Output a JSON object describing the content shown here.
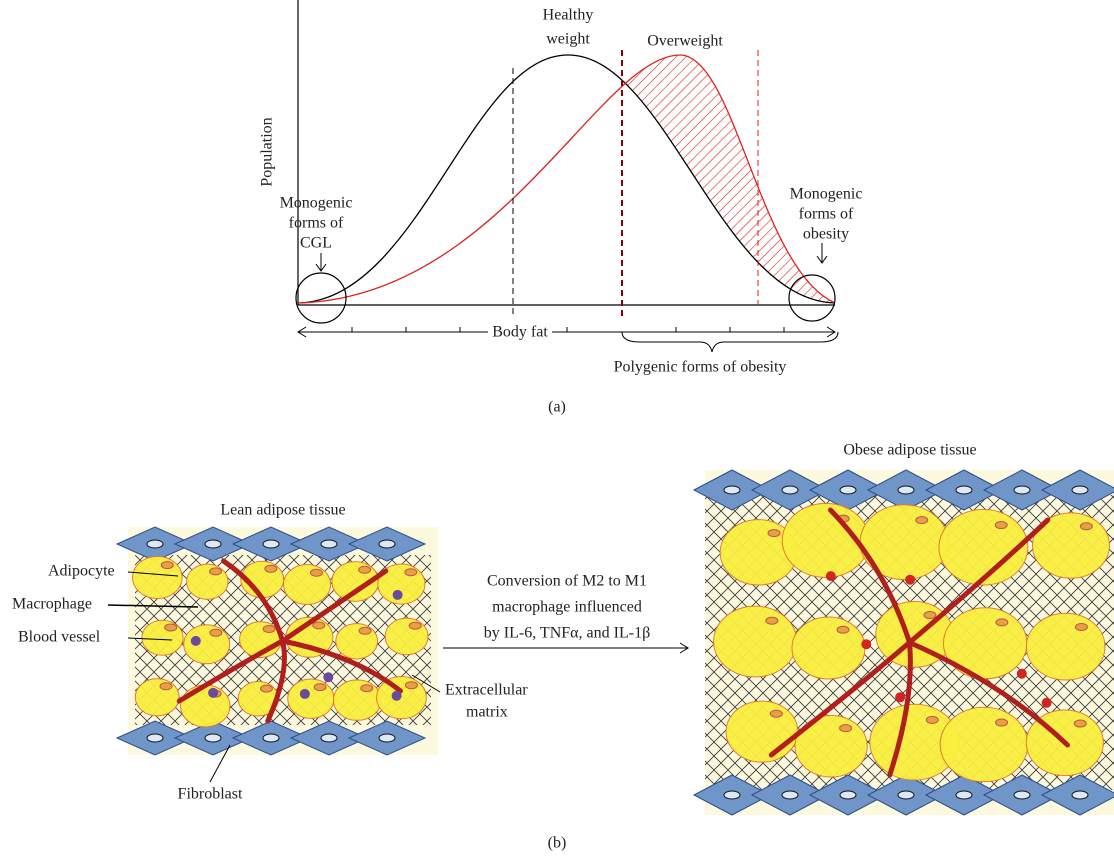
{
  "panel_a": {
    "y_axis_label": "Population",
    "healthy_label": [
      "Healthy",
      "weight"
    ],
    "overweight_label": "Overweight",
    "cgl_label": [
      "Monogenic",
      "forms of",
      "CGL"
    ],
    "obesity_label": [
      "Monogenic",
      "forms of",
      "obesity"
    ],
    "x_axis_label": "Body fat",
    "polygenic_label": "Polygenic forms of obesity",
    "caption": "(a)"
  },
  "panel_b": {
    "lean_title": "Lean adipose tissue",
    "obese_title": "Obese adipose tissue",
    "labels": {
      "adipocyte": "Adipocyte",
      "macrophage": "Macrophage",
      "blood_vessel": "Blood vessel",
      "extracellular_matrix": [
        "Extracellular",
        "matrix"
      ],
      "fibroblast": "Fibroblast"
    },
    "conversion_text": [
      "Conversion of M2 to M1",
      "macrophage influenced",
      "by IL-6, TNFα, and IL-1β"
    ],
    "caption": "(b)"
  }
}
